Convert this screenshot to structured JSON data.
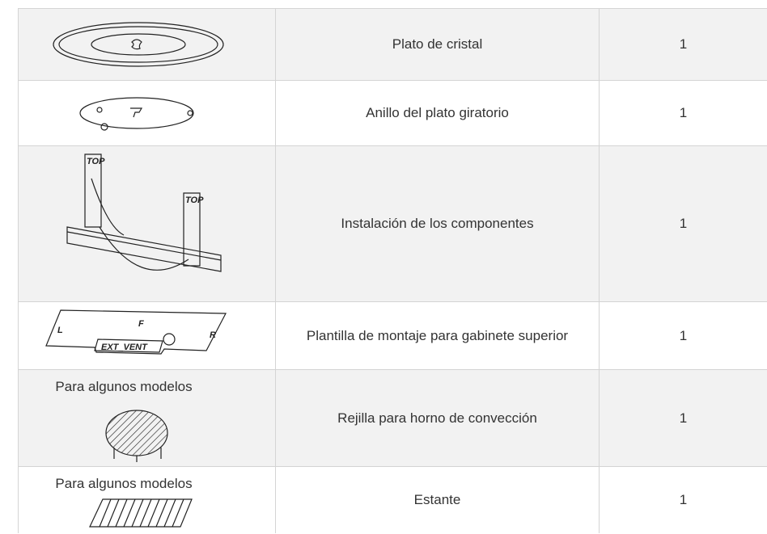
{
  "table": {
    "rows": [
      {
        "name": "Plato de cristal",
        "quantity": 1
      },
      {
        "name": "Anillo del plato giratorio",
        "quantity": 1
      },
      {
        "name": "Instalación de los componentes",
        "quantity": 1,
        "image_text": [
          "TOP",
          "TOP"
        ]
      },
      {
        "name": "Plantilla de montaje para gabinete superior",
        "quantity": 1,
        "image_text": [
          "L",
          "F",
          "R",
          "EXT_VENT"
        ]
      },
      {
        "note": "Para algunos modelos",
        "name": "Rejilla para horno de convección",
        "quantity": 1
      },
      {
        "note": "Para algunos modelos",
        "name": "Estante",
        "quantity": 1
      }
    ]
  }
}
